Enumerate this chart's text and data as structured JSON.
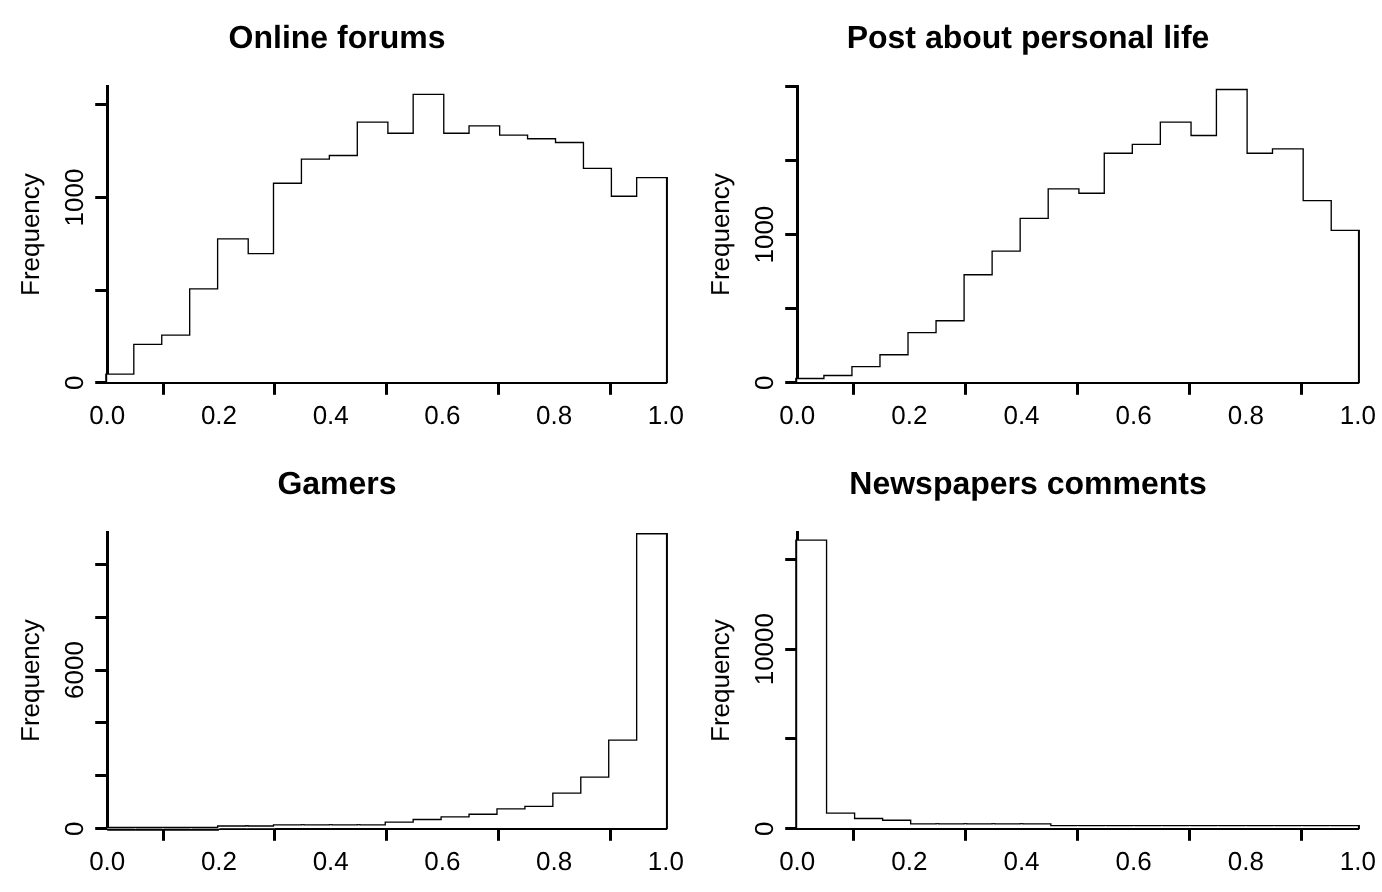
{
  "chart_data": [
    {
      "type": "histogram",
      "title": "Online forums",
      "ylabel": "Frequency",
      "color": "#ffffff",
      "bins": [
        0,
        0.05,
        0.1,
        0.15,
        0.2,
        0.25,
        0.3,
        0.35,
        0.4,
        0.45,
        0.5,
        0.55,
        0.6,
        0.65,
        0.7,
        0.75,
        0.8,
        0.85,
        0.9,
        0.95,
        1
      ],
      "values": [
        40,
        200,
        250,
        500,
        770,
        690,
        1070,
        1200,
        1220,
        1400,
        1340,
        1550,
        1340,
        1380,
        1330,
        1310,
        1290,
        1150,
        1000,
        1100
      ],
      "xlim": [
        0,
        1
      ],
      "xticks": [
        {
          "value": 0,
          "label": "0.0"
        },
        {
          "value": 0.2,
          "label": "0.2"
        },
        {
          "value": 0.4,
          "label": "0.4"
        },
        {
          "value": 0.6,
          "label": "0.6"
        },
        {
          "value": 0.8,
          "label": "0.8"
        },
        {
          "value": 1,
          "label": "1.0"
        }
      ],
      "ylim": [
        0,
        1600
      ],
      "yticks": [
        0,
        {
          "value": 500,
          "label": null
        },
        1000,
        {
          "value": 1500,
          "label": null
        }
      ],
      "grid": false
    },
    {
      "type": "histogram",
      "title": "Post about personal life",
      "ylabel": "Frequency",
      "color": "#ffffff",
      "bins": [
        0,
        0.05,
        0.1,
        0.15,
        0.2,
        0.25,
        0.3,
        0.35,
        0.4,
        0.45,
        0.5,
        0.55,
        0.6,
        0.65,
        0.7,
        0.75,
        0.8,
        0.85,
        0.9,
        0.95,
        1
      ],
      "values": [
        20,
        40,
        100,
        180,
        330,
        410,
        720,
        880,
        1100,
        1300,
        1270,
        1540,
        1600,
        1750,
        1660,
        1970,
        1540,
        1570,
        1220,
        1020
      ],
      "xlim": [
        0,
        1
      ],
      "xticks": [
        {
          "value": 0,
          "label": "0.0"
        },
        {
          "value": 0.2,
          "label": "0.2"
        },
        {
          "value": 0.4,
          "label": "0.4"
        },
        {
          "value": 0.6,
          "label": "0.6"
        },
        {
          "value": 0.8,
          "label": "0.8"
        },
        {
          "value": 1,
          "label": "1.0"
        }
      ],
      "ylim": [
        0,
        2000
      ],
      "yticks": [
        0,
        {
          "value": 500,
          "label": null
        },
        1000,
        {
          "value": 1500,
          "label": null
        },
        {
          "value": 2000,
          "label": null
        }
      ],
      "grid": false
    },
    {
      "type": "histogram",
      "title": "Gamers",
      "ylabel": "Frequency",
      "color": "#ffffff",
      "bins": [
        0,
        0.05,
        0.1,
        0.15,
        0.2,
        0.25,
        0.3,
        0.35,
        0.4,
        0.45,
        0.5,
        0.55,
        0.6,
        0.65,
        0.7,
        0.75,
        0.8,
        0.85,
        0.9,
        0.95,
        1
      ],
      "values": [
        0,
        0,
        0,
        0,
        50,
        50,
        100,
        100,
        100,
        100,
        200,
        300,
        400,
        500,
        700,
        800,
        1300,
        1900,
        3300,
        11100
      ],
      "xlim": [
        0,
        1
      ],
      "xticks": [
        {
          "value": 0,
          "label": "0.0"
        },
        {
          "value": 0.2,
          "label": "0.2"
        },
        {
          "value": 0.4,
          "label": "0.4"
        },
        {
          "value": 0.6,
          "label": "0.6"
        },
        {
          "value": 0.8,
          "label": "0.8"
        },
        {
          "value": 1,
          "label": "1.0"
        }
      ],
      "ylim": [
        0,
        11200
      ],
      "yticks": [
        0,
        {
          "value": 2000,
          "label": null
        },
        {
          "value": 4000,
          "label": null
        },
        6000,
        {
          "value": 8000,
          "label": null
        },
        {
          "value": 10000,
          "label": null
        }
      ],
      "grid": false
    },
    {
      "type": "histogram",
      "title": "Newspapers comments",
      "ylabel": "Frequency",
      "color": "#ffffff",
      "bins": [
        0,
        0.05,
        0.1,
        0.15,
        0.2,
        0.25,
        0.3,
        0.35,
        0.4,
        0.45,
        0.5,
        0.55,
        0.6,
        0.65,
        0.7,
        0.75,
        0.8,
        0.85,
        0.9,
        0.95,
        1
      ],
      "values": [
        16000,
        800,
        500,
        400,
        200,
        200,
        200,
        200,
        200,
        100,
        100,
        100,
        100,
        100,
        100,
        100,
        100,
        100,
        100,
        100
      ],
      "xlim": [
        0,
        1
      ],
      "xticks": [
        {
          "value": 0,
          "label": "0.0"
        },
        {
          "value": 0.2,
          "label": "0.2"
        },
        {
          "value": 0.4,
          "label": "0.4"
        },
        {
          "value": 0.6,
          "label": "0.6"
        },
        {
          "value": 0.8,
          "label": "0.8"
        },
        {
          "value": 1,
          "label": "1.0"
        }
      ],
      "ylim": [
        0,
        16500
      ],
      "yticks": [
        0,
        {
          "value": 5000,
          "label": null
        },
        10000,
        {
          "value": 15000,
          "label": null
        }
      ],
      "grid": false
    }
  ]
}
